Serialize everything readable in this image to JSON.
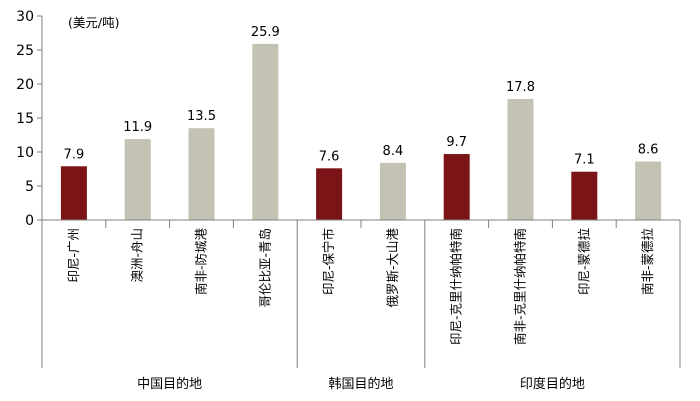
{
  "chart_data": {
    "type": "bar",
    "unit_label": "(美元/吨)",
    "title": "",
    "xlabel": "",
    "ylabel": "",
    "ylim": [
      0,
      30
    ],
    "yticks": [
      "0",
      "5",
      "10",
      "15",
      "20",
      "25",
      "30"
    ],
    "grid": false,
    "legend": "none",
    "categories": [
      "印尼-广州",
      "澳洲-舟山",
      "南非-防城港",
      "哥伦比亚-青岛",
      "印尼-保宁市",
      "俄罗斯-大山港",
      "印尼-克里什纳帕特南",
      "南非-克里什纳帕特南",
      "印尼-蒙德拉",
      "南非-蒙德拉"
    ],
    "values": [
      7.9,
      11.9,
      13.5,
      25.9,
      7.6,
      8.4,
      9.7,
      17.8,
      7.1,
      8.6
    ],
    "value_labels": [
      "7.9",
      "11.9",
      "13.5",
      "25.9",
      "7.6",
      "8.4",
      "9.7",
      "17.8",
      "7.1",
      "8.6"
    ],
    "groups": [
      {
        "label": "中国目的地",
        "start": 0,
        "end": 3
      },
      {
        "label": "韩国目的地",
        "start": 4,
        "end": 5
      },
      {
        "label": "印度目的地",
        "start": 6,
        "end": 9
      }
    ],
    "colors": {
      "highlight": "#7B1416",
      "normal": "#C3C2B3",
      "axis": "#808080"
    },
    "highlighted_indices": [
      0,
      4,
      6,
      8
    ]
  }
}
